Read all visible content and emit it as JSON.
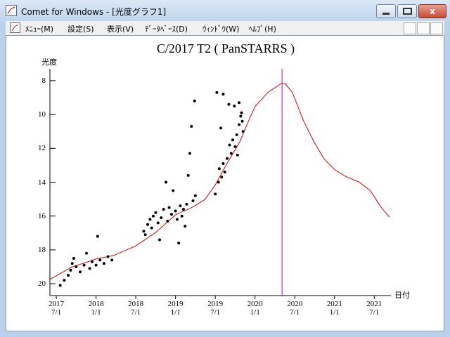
{
  "window": {
    "title": "Comet for Windows - [光度グラフ1]"
  },
  "menu": [
    "ﾒﾆｭｰ(M)",
    "設定(S)",
    "表示(V)",
    "ﾃﾞｰﾀﾍﾞｰｽ(D)",
    "ｳｨﾝﾄﾞｳ(W)",
    "ﾍﾙﾌﾟ(H)"
  ],
  "chart_data": {
    "type": "scatter",
    "title": "C/2017 T2 ( PanSTARRS )",
    "ylabel": "光度",
    "xlabel": "日付",
    "xlim": [
      2017.42,
      2021.71
    ],
    "ylim": [
      20.7,
      7.3
    ],
    "yticks": [
      8,
      10,
      12,
      14,
      16,
      18,
      20
    ],
    "xticks": [
      {
        "value": 2017.5,
        "label": "2017\n7/1"
      },
      {
        "value": 2018.0,
        "label": "2018\n1/1"
      },
      {
        "value": 2018.5,
        "label": "2018\n7/1"
      },
      {
        "value": 2019.0,
        "label": "2019\n1/1"
      },
      {
        "value": 2019.5,
        "label": "2019\n7/1"
      },
      {
        "value": 2020.0,
        "label": "2020\n1/1"
      },
      {
        "value": 2020.5,
        "label": "2020\n7/1"
      },
      {
        "value": 2021.0,
        "label": "2021\n1/1"
      },
      {
        "value": 2021.5,
        "label": "2021\n7/1"
      }
    ],
    "points": {
      "color": "#000000",
      "x": [
        2017.55,
        2017.6,
        2017.65,
        2017.68,
        2017.7,
        2017.72,
        2017.75,
        2017.8,
        2017.85,
        2017.88,
        2017.92,
        2017.95,
        2018.0,
        2018.02,
        2018.05,
        2018.1,
        2018.15,
        2018.2,
        2018.6,
        2018.62,
        2018.65,
        2018.68,
        2018.7,
        2018.72,
        2018.75,
        2018.78,
        2018.8,
        2018.82,
        2018.85,
        2018.88,
        2018.9,
        2018.92,
        2018.95,
        2018.97,
        2019.0,
        2019.02,
        2019.04,
        2019.06,
        2019.08,
        2019.1,
        2019.12,
        2019.14,
        2019.16,
        2019.18,
        2019.2,
        2019.22,
        2019.24,
        2019.25,
        2019.5,
        2019.52,
        2019.54,
        2019.55,
        2019.57,
        2019.58,
        2019.6,
        2019.6,
        2019.62,
        2019.65,
        2019.67,
        2019.68,
        2019.7,
        2019.72,
        2019.74,
        2019.75,
        2019.77,
        2019.78,
        2019.8,
        2019.8,
        2019.82,
        2019.83,
        2019.84,
        2019.85
      ],
      "values": [
        20.1,
        19.8,
        19.5,
        19.2,
        18.8,
        18.5,
        19.0,
        19.3,
        18.9,
        18.2,
        19.1,
        18.7,
        18.9,
        17.2,
        18.6,
        18.8,
        18.4,
        18.6,
        16.9,
        17.1,
        16.5,
        16.2,
        16.7,
        16.0,
        15.8,
        16.4,
        17.4,
        16.1,
        15.6,
        14.0,
        16.3,
        15.5,
        15.9,
        14.5,
        15.7,
        16.2,
        17.6,
        15.4,
        16.0,
        15.6,
        16.6,
        15.3,
        13.6,
        12.3,
        10.7,
        15.1,
        9.2,
        14.8,
        14.7,
        8.7,
        14.0,
        13.2,
        10.8,
        13.7,
        12.9,
        8.8,
        13.4,
        12.6,
        9.4,
        11.8,
        12.3,
        11.5,
        9.5,
        11.9,
        11.2,
        12.4,
        9.3,
        10.6,
        10.1,
        9.9,
        10.4,
        11.0
      ]
    },
    "curve": {
      "color": "#e00000",
      "x": [
        2017.42,
        2017.69,
        2018.0,
        2018.22,
        2018.49,
        2018.75,
        2019.0,
        2019.23,
        2019.37,
        2019.5,
        2019.63,
        2019.81,
        2019.94,
        2020.0,
        2020.16,
        2020.33,
        2020.38,
        2020.47,
        2020.61,
        2020.74,
        2020.87,
        2021.0,
        2021.14,
        2021.31,
        2021.45,
        2021.58,
        2021.69
      ],
      "values": [
        19.74,
        19.03,
        18.54,
        18.33,
        17.79,
        16.97,
        15.93,
        15.44,
        15.02,
        14.16,
        13.04,
        11.6,
        10.15,
        9.53,
        8.7,
        8.17,
        8.17,
        8.7,
        10.36,
        11.6,
        12.63,
        13.25,
        13.66,
        13.99,
        14.49,
        15.44,
        16.06
      ]
    },
    "vline": {
      "x": 2020.34,
      "color": "#c000c0"
    }
  }
}
